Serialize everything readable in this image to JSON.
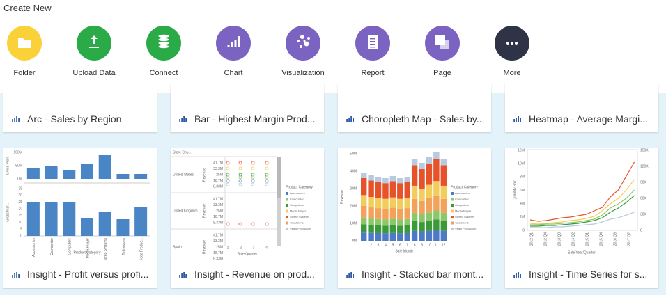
{
  "header": {
    "title": "Create New"
  },
  "create_items": [
    {
      "label": "Folder",
      "color": "#fbd13a"
    },
    {
      "label": "Upload Data",
      "color": "#2aab48"
    },
    {
      "label": "Connect",
      "color": "#2aab48"
    },
    {
      "label": "Chart",
      "color": "#7b63c2"
    },
    {
      "label": "Visualization",
      "color": "#7b63c2"
    },
    {
      "label": "Report",
      "color": "#7b63c2"
    },
    {
      "label": "Page",
      "color": "#7b63c2"
    },
    {
      "label": "More",
      "color": "#2e3346"
    }
  ],
  "cards_top": [
    "Arc - Sales by Region",
    "Bar - Highest Margin Prod...",
    "Choropleth Map - Sales by...",
    "Heatmap - Average Margi..."
  ],
  "cards_bottom": [
    {
      "title": "Insight - Profit versus profi...",
      "chart": {
        "y_label_top": "Gross Profit",
        "y_label_bottom": "Gross Mar...",
        "yticks_top": [
          "100M",
          "50M",
          "0M"
        ],
        "yticks_bottom": [
          "35",
          "30",
          "25",
          "20",
          "15",
          "10",
          "5",
          "0"
        ],
        "categories": [
          "Accessories",
          "Camcorder",
          "Computers",
          "Media Player",
          "Stereo Systems",
          "Televisions",
          "Video Produc..."
        ],
        "x_label": "Product Category"
      }
    },
    {
      "title": "Insight - Revenue on prod...",
      "chart": {
        "facet_label": "Store Cou...",
        "facets": [
          "United States",
          "United Kingdom",
          "Spain"
        ],
        "y_label": "Revenue",
        "yticks": [
          "41.7M",
          "33.3M",
          "25M",
          "16.7M",
          "8.33M"
        ],
        "xticks": [
          "1",
          "2",
          "3",
          "4"
        ],
        "x_label": "Sale Quarter",
        "legend_title": "Product Category",
        "legend": [
          "Accessories",
          "Camcorder",
          "Computers",
          "Media Player",
          "Stereo Systems",
          "Televisions",
          "Video Production"
        ]
      }
    },
    {
      "title": "Insight - Stacked bar mont...",
      "chart": {
        "yticks": [
          "50M",
          "40M",
          "30M",
          "20M",
          "10M",
          "0M"
        ],
        "y_label": "Revenue",
        "xticks": [
          "1",
          "2",
          "3",
          "4",
          "5",
          "6",
          "7",
          "8",
          "9",
          "10",
          "11",
          "12"
        ],
        "x_label": "Sale Month",
        "legend_title": "Product Category",
        "legend": [
          "Accessories",
          "Camcorder",
          "Computers",
          "Media Player",
          "Stereo Systems",
          "Televisions",
          "Video Production"
        ]
      }
    },
    {
      "title": "Insight - Time Series for s...",
      "chart": {
        "yticks": [
          "12M",
          "10M",
          "8M",
          "6M",
          "4M",
          "2M",
          "0"
        ],
        "y2ticks": [
          "150K",
          "120K",
          "90K",
          "60K",
          "30K",
          "0"
        ],
        "y_label": "Quantity Sold",
        "x_label": "Sale Year/Quarter",
        "xticks": [
          "2012 Q1",
          "2012 Q4",
          "2013 Q3",
          "2014 Q2",
          "2015 Q1",
          "2015 Q4",
          "2016 Q3",
          "2017 Q2"
        ]
      }
    }
  ]
}
